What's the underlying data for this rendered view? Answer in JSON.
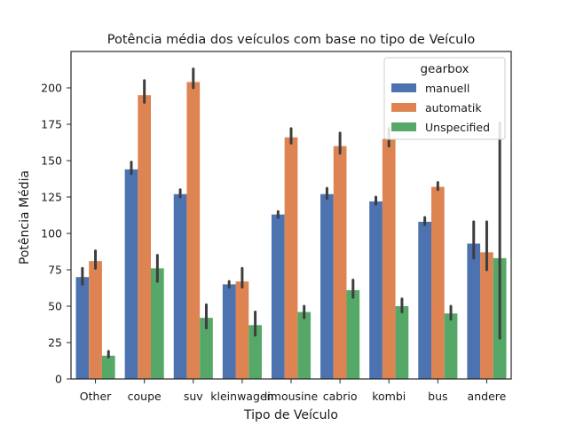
{
  "chart_data": {
    "type": "bar",
    "title": "Potência média dos veículos com base no tipo de Veículo",
    "xlabel": "Tipo de Veículo",
    "ylabel": "Potência Média",
    "categories": [
      "Other",
      "coupe",
      "suv",
      "kleinwagen",
      "limousine",
      "cabrio",
      "kombi",
      "bus",
      "andere"
    ],
    "ylim": [
      0,
      225
    ],
    "yticks": [
      0,
      25,
      50,
      75,
      100,
      125,
      150,
      175,
      200
    ],
    "grid": false,
    "legend": {
      "title": "gearbox",
      "placement": "top-right"
    },
    "series": [
      {
        "name": "manuell",
        "color": "#4c72b0",
        "values": [
          70,
          144,
          127,
          65,
          113,
          127,
          122,
          108,
          93
        ],
        "ci_low": [
          65,
          141,
          125,
          63,
          111,
          124,
          120,
          106,
          83
        ],
        "ci_high": [
          76,
          149,
          130,
          67,
          115,
          131,
          125,
          111,
          108
        ]
      },
      {
        "name": "automatik",
        "color": "#dd8452",
        "values": [
          81,
          195,
          204,
          67,
          166,
          160,
          165,
          132,
          87
        ],
        "ci_low": [
          76,
          190,
          200,
          63,
          162,
          155,
          160,
          130,
          75
        ],
        "ci_high": [
          88,
          205,
          213,
          76,
          172,
          169,
          172,
          135,
          108
        ]
      },
      {
        "name": "Unspecified",
        "color": "#55a868",
        "values": [
          16,
          76,
          42,
          37,
          46,
          61,
          50,
          45,
          83
        ],
        "ci_low": [
          15,
          67,
          35,
          30,
          42,
          56,
          46,
          41,
          28
        ],
        "ci_high": [
          19,
          85,
          51,
          46,
          50,
          68,
          55,
          50,
          176
        ]
      }
    ]
  }
}
